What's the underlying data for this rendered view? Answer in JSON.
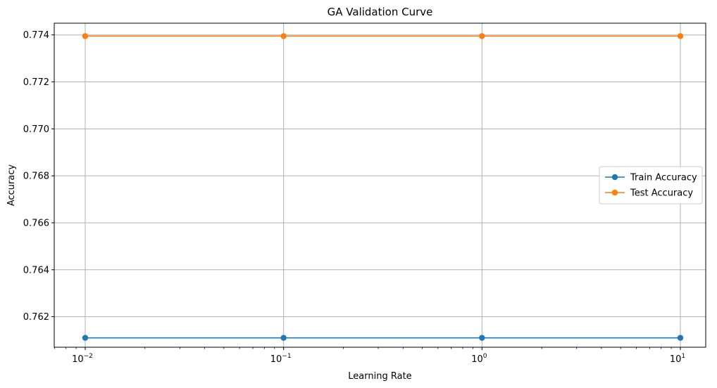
{
  "chart_data": {
    "type": "line",
    "title": "GA Validation Curve",
    "xlabel": "Learning Rate",
    "ylabel": "Accuracy",
    "x_scale": "log",
    "x": [
      0.01,
      0.1,
      1,
      10
    ],
    "x_tick_labels": [
      {
        "value": 0.01,
        "base": "10",
        "exp": "−2"
      },
      {
        "value": 0.1,
        "base": "10",
        "exp": "−1"
      },
      {
        "value": 1,
        "base": "10",
        "exp": "0"
      },
      {
        "value": 10,
        "base": "10",
        "exp": "1"
      }
    ],
    "yticks": [
      "0.762",
      "0.764",
      "0.766",
      "0.768",
      "0.770",
      "0.772",
      "0.774"
    ],
    "ylim": [
      0.7607,
      0.7745
    ],
    "grid": true,
    "legend_position": "center-right",
    "series": [
      {
        "name": "Train Accuracy",
        "color": "#1f77b4",
        "values": [
          0.7611,
          0.7611,
          0.7611,
          0.7611
        ]
      },
      {
        "name": "Test Accuracy",
        "color": "#ff7f0e",
        "values": [
          0.77395,
          0.77395,
          0.77395,
          0.77395
        ]
      }
    ]
  }
}
